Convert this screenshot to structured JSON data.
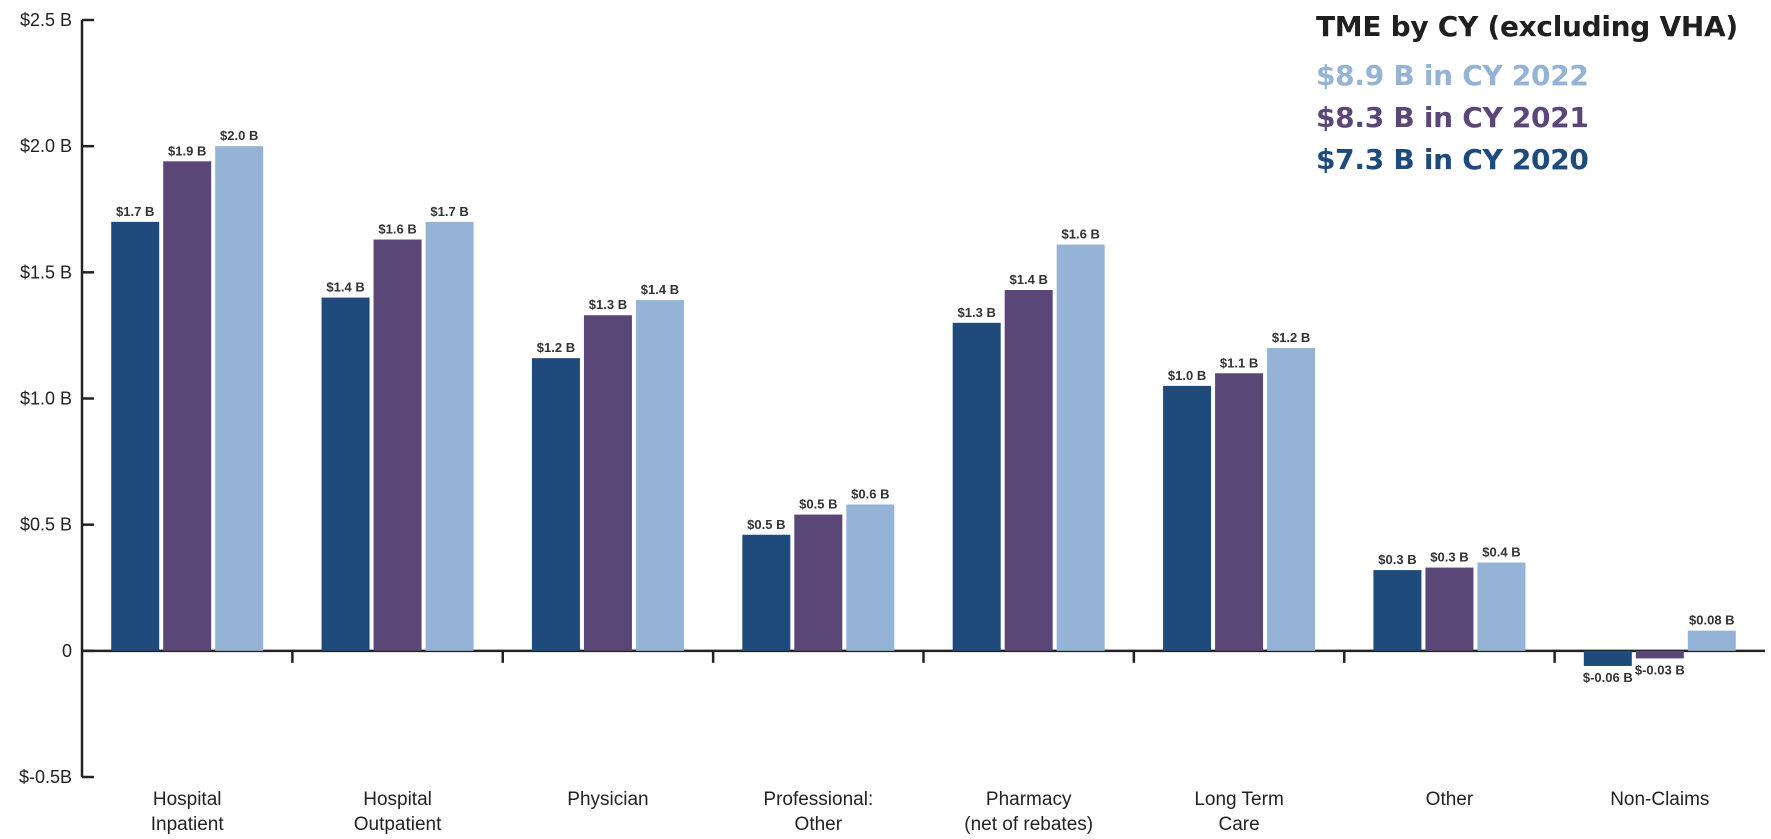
{
  "chart_data": {
    "type": "bar",
    "title": "TME by CY (excluding VHA)",
    "categories": [
      [
        "Hospital",
        "Inpatient"
      ],
      [
        "Hospital",
        "Outpatient"
      ],
      [
        "Physician"
      ],
      [
        "Professional:",
        "Other"
      ],
      [
        "Pharmacy",
        "(net of rebates)"
      ],
      [
        "Long Term",
        "Care"
      ],
      [
        "Other"
      ],
      [
        "Non-Claims"
      ]
    ],
    "series": [
      {
        "name": "$7.3 B in CY 2020",
        "color": "#1f4a7c",
        "values": [
          1.7,
          1.4,
          1.16,
          0.46,
          1.3,
          1.05,
          0.32,
          -0.06
        ],
        "labels": [
          "$1.7 B",
          "$1.4 B",
          "$1.2 B",
          "$0.5 B",
          "$1.3 B",
          "$1.0 B",
          "$0.3 B",
          "$-0.06 B"
        ]
      },
      {
        "name": "$8.3 B in CY 2021",
        "color": "#5b4777",
        "values": [
          1.94,
          1.63,
          1.33,
          0.54,
          1.43,
          1.1,
          0.33,
          -0.03
        ],
        "labels": [
          "$1.9 B",
          "$1.6 B",
          "$1.3 B",
          "$0.5 B",
          "$1.4 B",
          "$1.1 B",
          "$0.3 B",
          "$-0.03 B"
        ]
      },
      {
        "name": "$8.9 B in CY 2022",
        "color": "#95b3d7",
        "values": [
          2.0,
          1.7,
          1.39,
          0.58,
          1.61,
          1.2,
          0.35,
          0.08
        ],
        "labels": [
          "$2.0 B",
          "$1.7 B",
          "$1.4 B",
          "$0.6 B",
          "$1.6 B",
          "$1.2 B",
          "$0.4 B",
          "$0.08 B"
        ]
      }
    ],
    "legend_order": [
      2,
      1,
      0
    ],
    "legend_placement": "top-right",
    "yticks": [
      {
        "value": 2.5,
        "label": "$2.5 B"
      },
      {
        "value": 2.0,
        "label": "$2.0 B"
      },
      {
        "value": 1.5,
        "label": "$1.5 B"
      },
      {
        "value": 1.0,
        "label": "$1.0 B"
      },
      {
        "value": 0.5,
        "label": "$0.5 B"
      },
      {
        "value": 0,
        "label": "0"
      },
      {
        "value": -0.5,
        "label": "$-0.5B"
      }
    ],
    "ylim": [
      -0.5,
      2.5
    ],
    "grid": false
  }
}
